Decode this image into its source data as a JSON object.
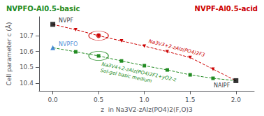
{
  "chart_data": {
    "type": "line",
    "xlabel": "z  in Na3V2-zAlz(PO4)2(F,O)3",
    "ylabel": "Cell parameter c (Å)",
    "xlim": [
      -0.15,
      2.2
    ],
    "xticks": [
      {
        "value": 0,
        "label": "0.0"
      },
      0.5,
      {
        "value": 1,
        "label": "1.0"
      },
      1.5,
      {
        "value": 2,
        "label": "2.0"
      }
    ],
    "ylim": [
      10.35,
      10.82
    ],
    "yticks": [
      10.4,
      10.5,
      10.6,
      10.7
    ],
    "grid": false,
    "headers": [
      {
        "text": "NVPFO-Al0.5-basic",
        "color": "#228B22"
      },
      {
        "text": "NVPF-Al0.5-acid",
        "color": "#cc0000"
      }
    ],
    "series": [
      {
        "color": "#cc0000",
        "line_style": "dashed",
        "marker": "triangle_down",
        "x": [
          0.0,
          0.25,
          0.5,
          0.75,
          1.0,
          1.25,
          1.5,
          1.75,
          2.0
        ],
        "values": [
          10.772,
          10.738,
          10.7,
          10.667,
          10.634,
          10.599,
          10.562,
          10.488,
          10.415
        ],
        "annotation": [
          "Na3V3+2-zAlz(PO4)2F3"
        ]
      },
      {
        "color": "#228B22",
        "line_style": "dashed",
        "marker": "square",
        "x": [
          0.0,
          0.25,
          0.5,
          0.75,
          1.0,
          1.25,
          1.5,
          1.75,
          2.0
        ],
        "values": [
          10.624,
          10.598,
          10.572,
          10.54,
          10.51,
          10.483,
          10.452,
          10.43,
          10.415
        ],
        "annotation": [
          "Na3V4+2-zAlz(PO4)2F1+yO2-z",
          "Sol-gel basic medium"
        ]
      }
    ],
    "points": [
      {
        "x": 0.0,
        "y": 10.772,
        "label": "NVPF",
        "color": "#000000",
        "marker": "square"
      },
      {
        "x": 0.0,
        "y": 10.624,
        "label": "NVPFO",
        "color": "#1a6fcc",
        "marker": "triangle"
      },
      {
        "x": 2.0,
        "y": 10.415,
        "label": "NAIPF",
        "color": "#000000",
        "marker": "square"
      }
    ],
    "highlights": [
      {
        "x": 0.5,
        "y": 10.7,
        "color": "#cc0000",
        "marker": "circle"
      },
      {
        "x": 0.5,
        "y": 10.572,
        "color": "#228B22"
      }
    ]
  }
}
